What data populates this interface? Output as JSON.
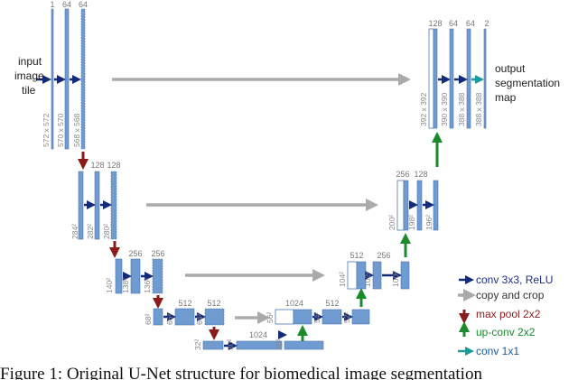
{
  "input_label": [
    "input",
    "image",
    "tile"
  ],
  "output_label": [
    "output",
    "segmentation",
    "map"
  ],
  "channel_labels": [
    "1",
    "64",
    "64",
    "128",
    "128",
    "256",
    "256",
    "512",
    "512",
    "1024",
    "1024",
    "512",
    "512",
    "256",
    "256",
    "128",
    "128",
    "64",
    "64",
    "2"
  ],
  "size_labels": [
    "572 x 572",
    "570 x 570",
    "568 x 568",
    "284²",
    "282²",
    "280²",
    "140²",
    "138²",
    "136²",
    "68²",
    "66²",
    "64²",
    "32²",
    "30²",
    "28²",
    "56²",
    "54²",
    "52²",
    "104²",
    "102²",
    "100²",
    "200²",
    "198²",
    "196²",
    "392 x 392",
    "390 x 390",
    "388 x 388",
    "388 x 388"
  ],
  "legend": [
    "conv 3x3, ReLU",
    "copy and crop",
    "max pool 2x2",
    "up-conv 2x2",
    "conv 1x1"
  ],
  "caption": "Figure 1: Original U-Net structure for biomedical image segmentation"
}
